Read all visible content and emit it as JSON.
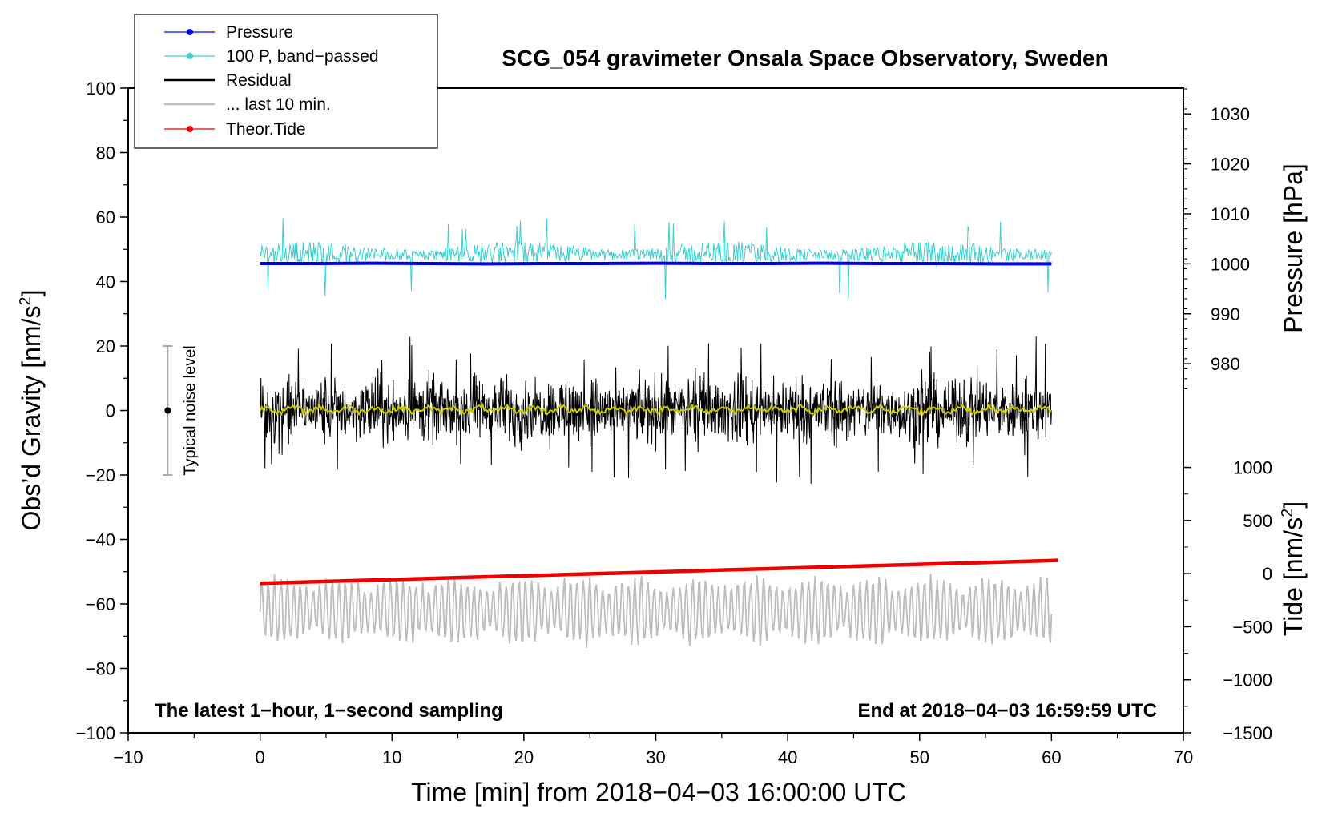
{
  "chart_data": {
    "type": "line",
    "title": "SCG_054 gravimeter Onsala Space Observatory, Sweden",
    "xlabel": "Time [min] from 2018−04−03 16:00:00 UTC",
    "ylabel_left": "Obs’d Gravity [nm/s",
    "ylabel_left_sup": "2",
    "ylabel_left_end": "]",
    "ylabel_right_top": "Pressure [hPa]",
    "ylabel_right_bottom": "Tide [nm/s",
    "ylabel_right_bottom_sup": "2",
    "ylabel_right_bottom_end": "]",
    "xlim": [
      -10,
      70
    ],
    "ylim_left": [
      -100,
      100
    ],
    "x_ticks": [
      -10,
      0,
      10,
      20,
      30,
      40,
      50,
      60,
      70
    ],
    "x_tick_labels": [
      "−10",
      "0",
      "10",
      "20",
      "30",
      "40",
      "50",
      "60",
      "70"
    ],
    "y_left_ticks": [
      100,
      80,
      60,
      40,
      20,
      0,
      -20,
      -40,
      -60,
      -80,
      -100
    ],
    "y_left_tick_labels": [
      "100",
      "80",
      "60",
      "40",
      "20",
      "0",
      "−20",
      "−40",
      "−60",
      "−80",
      "−100"
    ],
    "y_right_pressure_ticks": [
      1030,
      1020,
      1010,
      1000,
      990,
      980
    ],
    "y_right_pressure_tick_labels": [
      "1030",
      "1020",
      "1010",
      "1000",
      "990",
      "980"
    ],
    "pressure_axis_map": {
      "hpa_a": 1000,
      "grav_a": 45.5,
      "hpa_b": 1030,
      "grav_b": 92
    },
    "y_right_tide_ticks": [
      1000,
      500,
      0,
      -500,
      -1000,
      -1500
    ],
    "y_right_tide_tick_labels": [
      "1000",
      "500",
      "0",
      "−500",
      "−1000",
      "−1500"
    ],
    "tide_axis_map": {
      "tide_a": 0,
      "grav_a": -50.6,
      "tide_b": -1500,
      "grav_b": -100
    },
    "legend": [
      "Pressure",
      "100 P, band−passed",
      "Residual",
      "... last 10 min.",
      "Theor.Tide"
    ],
    "legend_position": "top-left",
    "noise_bar": {
      "x": -7,
      "center": 0,
      "low": -20,
      "high": 20,
      "label": "Typical noise level"
    },
    "footer_left": "The latest 1−hour, 1−second sampling",
    "footer_right": "End at 2018−04−03 16:59:59 UTC",
    "series": [
      {
        "name": "Pressure",
        "color": "#0000ee",
        "x_range": [
          0,
          60
        ],
        "values": [
          45.6,
          45.6,
          45.7,
          45.6,
          45.5,
          45.6,
          45.6,
          45.7,
          45.6,
          45.6,
          45.7,
          45.6,
          45.6,
          45.5,
          45.5
        ]
      },
      {
        "name": "100 P, band−passed",
        "color": "#3cd0d0",
        "x_range": [
          0,
          60
        ],
        "baseline": 48,
        "amplitude": 4.5
      },
      {
        "name": "Residual",
        "color": "#000000",
        "x_range": [
          0,
          60
        ],
        "baseline": 0,
        "amplitude": 11
      },
      {
        "name": "Residual smoothed",
        "color": "#cccc00",
        "x_range": [
          0,
          60
        ],
        "baseline": 0.3,
        "amplitude": 1.2
      },
      {
        "name": "... last 10 min.",
        "color": "#bdbdbd",
        "x_range": [
          0,
          60
        ],
        "baseline": -62,
        "amplitude": 8
      },
      {
        "name": "Theor.Tide",
        "color": "#ee0000",
        "x_range": [
          0,
          60.5
        ],
        "y_start": -53.6,
        "y_end": -46.5
      }
    ]
  }
}
